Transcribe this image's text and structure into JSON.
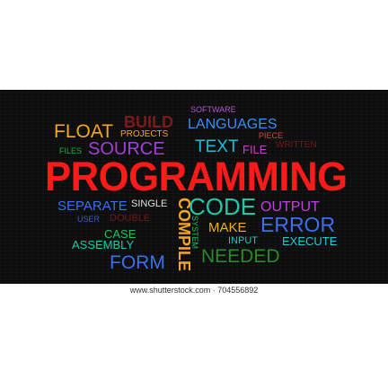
{
  "word_cloud": {
    "main": {
      "text": "PROGRAMMING",
      "color": "#ff1a1a"
    },
    "words": [
      {
        "key": "float",
        "text": "FLOAT",
        "color": "#f5a623"
      },
      {
        "key": "projects",
        "text": "PROJECTS",
        "color": "#f5a623"
      },
      {
        "key": "build",
        "text": "BUILD",
        "color": "#7a1a1a"
      },
      {
        "key": "software",
        "text": "SOFTWARE",
        "color": "#b84fd6"
      },
      {
        "key": "languages",
        "text": "LANGUAGES",
        "color": "#3a8ff0"
      },
      {
        "key": "piece",
        "text": "PIECE",
        "color": "#e04040"
      },
      {
        "key": "files",
        "text": "FILES",
        "color": "#22aa44"
      },
      {
        "key": "source",
        "text": "SOURCE",
        "color": "#a040d8"
      },
      {
        "key": "text",
        "text": "TEXT",
        "color": "#20b8e0"
      },
      {
        "key": "file",
        "text": "FILE",
        "color": "#c040c0"
      },
      {
        "key": "written",
        "text": "WRITTEN",
        "color": "#6a1a1a"
      },
      {
        "key": "separate",
        "text": "SEPARATE",
        "color": "#3a6ff0"
      },
      {
        "key": "single",
        "text": "SINGLE",
        "color": "#e0e0e0"
      },
      {
        "key": "code",
        "text": "CODE",
        "color": "#20c8a8"
      },
      {
        "key": "output",
        "text": "OUTPUT",
        "color": "#c040e0"
      },
      {
        "key": "user",
        "text": "USER",
        "color": "#3a5ad0"
      },
      {
        "key": "double",
        "text": "DOUBLE",
        "color": "#6a1a1a"
      },
      {
        "key": "error",
        "text": "ERROR",
        "color": "#3a6ff0"
      },
      {
        "key": "case",
        "text": "CASE",
        "color": "#22c060"
      },
      {
        "key": "make",
        "text": "MAKE",
        "color": "#f0b020"
      },
      {
        "key": "assembly",
        "text": "ASSEMBLY",
        "color": "#20c8a8"
      },
      {
        "key": "input",
        "text": "INPUT",
        "color": "#20c8c8"
      },
      {
        "key": "execute",
        "text": "EXECUTE",
        "color": "#20c8d8"
      },
      {
        "key": "form",
        "text": "FORM",
        "color": "#3a6ff0"
      },
      {
        "key": "needed",
        "text": "NEEDED",
        "color": "#2a8a2a"
      },
      {
        "key": "compile",
        "text": "COMPILE",
        "color": "#f5a623"
      },
      {
        "key": "system",
        "text": "SYSTEM",
        "color": "#22c060"
      }
    ]
  },
  "watermark": {
    "text": "www.shutterstock.com · 704556892"
  }
}
